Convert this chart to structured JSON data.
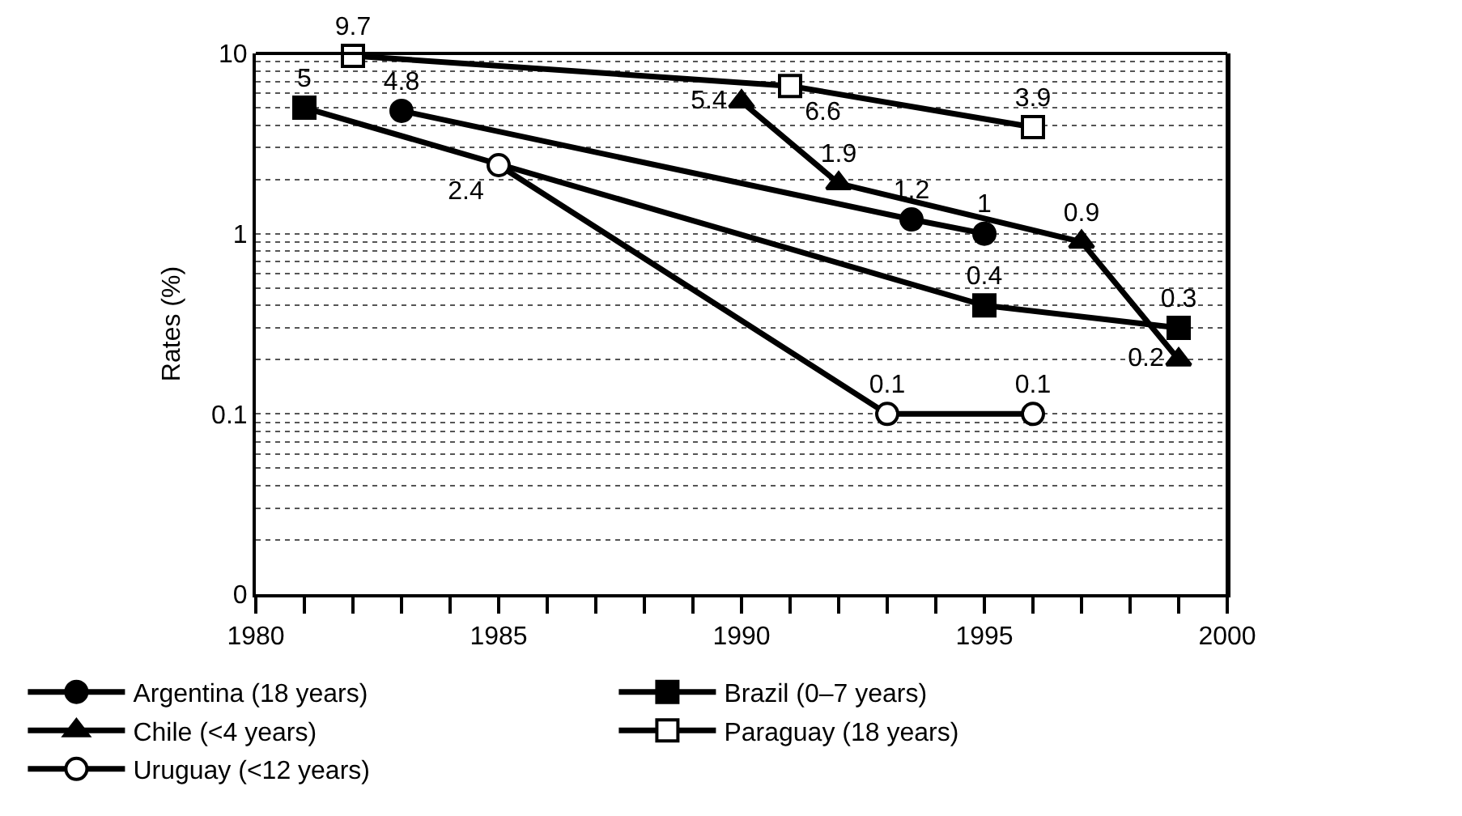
{
  "chart_data": {
    "type": "line",
    "ylabel": "Rates (%)",
    "log": "y",
    "xlim": [
      1980,
      2000
    ],
    "xticks": [
      1980,
      {
        "value": 1981,
        "label": null
      },
      {
        "value": 1982,
        "label": null
      },
      {
        "value": 1983,
        "label": null
      },
      {
        "value": 1984,
        "label": null
      },
      1985,
      {
        "value": 1986,
        "label": null
      },
      {
        "value": 1987,
        "label": null
      },
      {
        "value": 1988,
        "label": null
      },
      {
        "value": 1989,
        "label": null
      },
      1990,
      {
        "value": 1991,
        "label": null
      },
      {
        "value": 1992,
        "label": null
      },
      {
        "value": 1993,
        "label": null
      },
      {
        "value": 1994,
        "label": null
      },
      1995,
      {
        "value": 1996,
        "label": null
      },
      {
        "value": 1997,
        "label": null
      },
      {
        "value": 1998,
        "label": null
      },
      {
        "value": 1999,
        "label": null
      },
      2000
    ],
    "ylim": [
      0.01,
      10
    ],
    "yticks": [
      {
        "value": 0.01,
        "label": "0"
      },
      0.1,
      1,
      10
    ],
    "grid": "y",
    "legend": "bottom",
    "data_labels": true,
    "line_style": "solid",
    "series": [
      {
        "name": "Argentina (18 years)",
        "color": "#000000",
        "marker": "circle",
        "x": [
          1983,
          1993.5,
          1995
        ],
        "values": [
          4.8,
          1.2,
          1
        ]
      },
      {
        "name": "Brazil (0–7 years)",
        "color": "#000000",
        "marker": "square",
        "x": [
          1981,
          1995,
          1999
        ],
        "values": [
          5,
          0.4,
          0.3
        ]
      },
      {
        "name": "Chile (<4 years)",
        "color": "#000000",
        "marker": "triangle",
        "x": [
          1990,
          1992,
          1997,
          1999
        ],
        "values": [
          5.4,
          1.9,
          0.9,
          0.2
        ]
      },
      {
        "name": "Paraguay (18 years)",
        "color": "#000000",
        "marker": "square",
        "colors": [
          "#ffffff",
          "#ffffff",
          "#ffffff"
        ],
        "x": [
          1982,
          1991,
          1996
        ],
        "values": [
          9.7,
          6.6,
          3.9
        ]
      },
      {
        "name": "Uruguay (<12 years)",
        "color": "#000000",
        "marker": "circle",
        "colors": [
          "#ffffff",
          "#ffffff",
          "#ffffff"
        ],
        "x": [
          1985,
          1993,
          1996
        ],
        "values": [
          2.4,
          0.1,
          0.1
        ]
      }
    ]
  }
}
